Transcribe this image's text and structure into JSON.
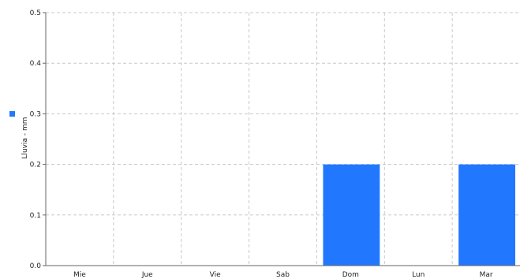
{
  "chart_data": {
    "type": "bar",
    "title": "",
    "xlabel": "",
    "ylabel": "Lluvia - mm",
    "categories": [
      "Mie",
      "Jue",
      "Vie",
      "Sab",
      "Dom",
      "Lun",
      "Mar"
    ],
    "series": [
      {
        "values": [
          0,
          0,
          0,
          0,
          0.2,
          0,
          0.2
        ]
      }
    ],
    "ylim": [
      0,
      0.5
    ],
    "yticks": [
      "0.0",
      "0.1",
      "0.2",
      "0.3",
      "0.4",
      "0.5"
    ],
    "grid": true,
    "legend": "left",
    "colors": {
      "bar": "#2277ff",
      "grid": "#c8c8c8",
      "axis": "#666666"
    }
  }
}
